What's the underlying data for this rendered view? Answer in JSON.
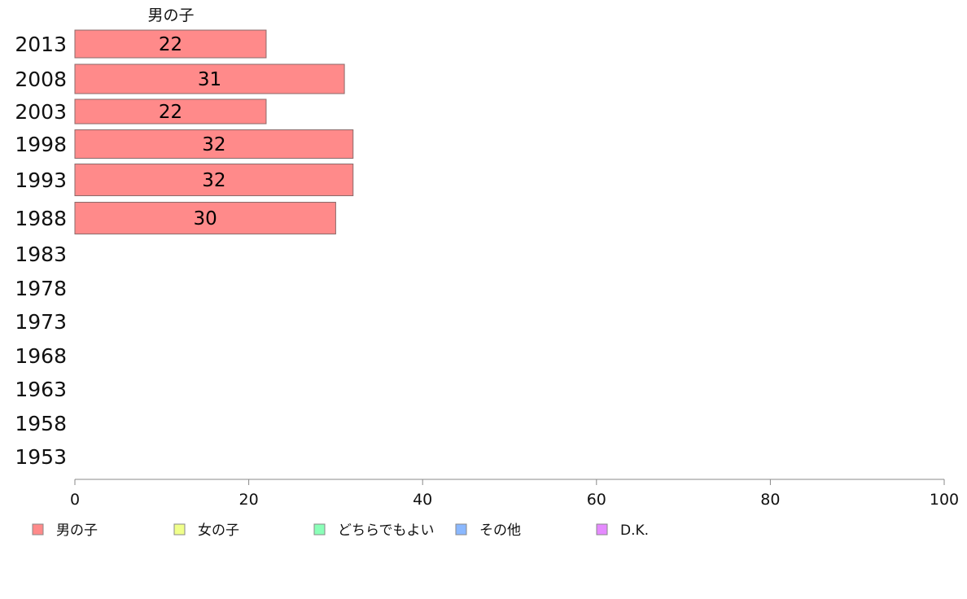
{
  "chart_data": {
    "type": "bar",
    "orientation": "horizontal",
    "stacked": true,
    "series_title": "男の子",
    "categories": [
      "2013",
      "2008",
      "2003",
      "1998",
      "1993",
      "1988",
      "1983",
      "1978",
      "1973",
      "1968",
      "1963",
      "1958",
      "1953"
    ],
    "series": [
      {
        "name": "男の子",
        "color": "#ff8a8a",
        "values": [
          22,
          31,
          22,
          32,
          32,
          30,
          null,
          null,
          null,
          null,
          null,
          null,
          null
        ]
      },
      {
        "name": "女の子",
        "color": "#f0ff8a",
        "values": [
          null,
          null,
          null,
          null,
          null,
          null,
          null,
          null,
          null,
          null,
          null,
          null,
          null
        ]
      },
      {
        "name": "どちらでもよい",
        "color": "#8affb8",
        "values": [
          null,
          null,
          null,
          null,
          null,
          null,
          null,
          null,
          null,
          null,
          null,
          null,
          null
        ]
      },
      {
        "name": "その他",
        "color": "#8ab8ff",
        "values": [
          null,
          null,
          null,
          null,
          null,
          null,
          null,
          null,
          null,
          null,
          null,
          null,
          null
        ]
      },
      {
        "name": "D.K.",
        "color": "#e58aff",
        "values": [
          null,
          null,
          null,
          null,
          null,
          null,
          null,
          null,
          null,
          null,
          null,
          null,
          null
        ]
      }
    ],
    "xlim": [
      0,
      100
    ],
    "xticks": [
      "0",
      "20",
      "40",
      "60",
      "80",
      "100"
    ],
    "grid": false,
    "legend_position": "bottom"
  }
}
